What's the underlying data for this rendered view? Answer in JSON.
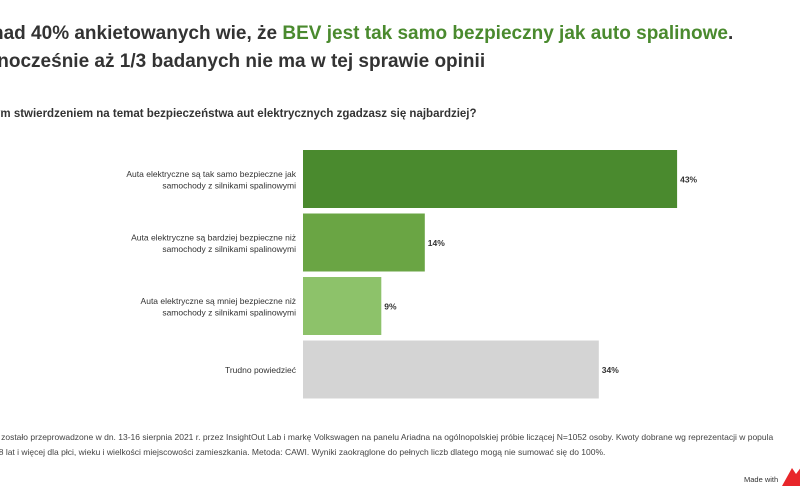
{
  "header": {
    "line1_prefix": "nad 40% ankietowanych wie, że ",
    "line1_highlight": "BEV jest tak samo bezpieczny jak auto spalinowe",
    "line1_suffix": ".",
    "line2": "lnocześnie aż 1/3 badanych nie ma w tej sprawie opinii"
  },
  "question": "ym stwierdzeniem na temat bezpieczeństwa aut elektrycznych zgadzasz się najbardziej?",
  "chart_data": {
    "type": "bar",
    "orientation": "horizontal",
    "categories": [
      [
        "Auta elektryczne są tak samo bezpieczne jak",
        "samochody z silnikami spalinowymi"
      ],
      [
        "Auta elektryczne są bardziej bezpieczne niż",
        "samochody z silnikami spalinowymi"
      ],
      [
        "Auta elektryczne są mniej bezpieczne niż",
        "samochody z silnikami spalinowymi"
      ],
      [
        "Trudno powiedzieć"
      ]
    ],
    "values": [
      43,
      14,
      9,
      34
    ],
    "value_labels": [
      "43%",
      "14%",
      "9%",
      "34%"
    ],
    "colors": [
      "#4a8a2e",
      "#6aa544",
      "#8dc26a",
      "#d4d4d4"
    ],
    "grid": false
  },
  "footnote": {
    "line1": "e zostało przeprowadzone w dn. 13-16 sierpnia 2021 r. przez InsightOut Lab i markę Volkswagen na panelu Ariadna na ogólnopolskiej próbie liczącej N=1052 osoby. Kwoty dobrane wg reprezentacji w popula",
    "line2": "18 lat i więcej dla płci, wieku i wielkości miejscowości zamieszkania. Metoda: CAWI. Wyniki zaokrąglone do pełnych liczb dlatego mogą nie sumować się do 100%."
  },
  "branding": {
    "made_with": "Made with",
    "logo_icon": "red-arrow-logo-icon",
    "logo_color": "#e8262a"
  }
}
